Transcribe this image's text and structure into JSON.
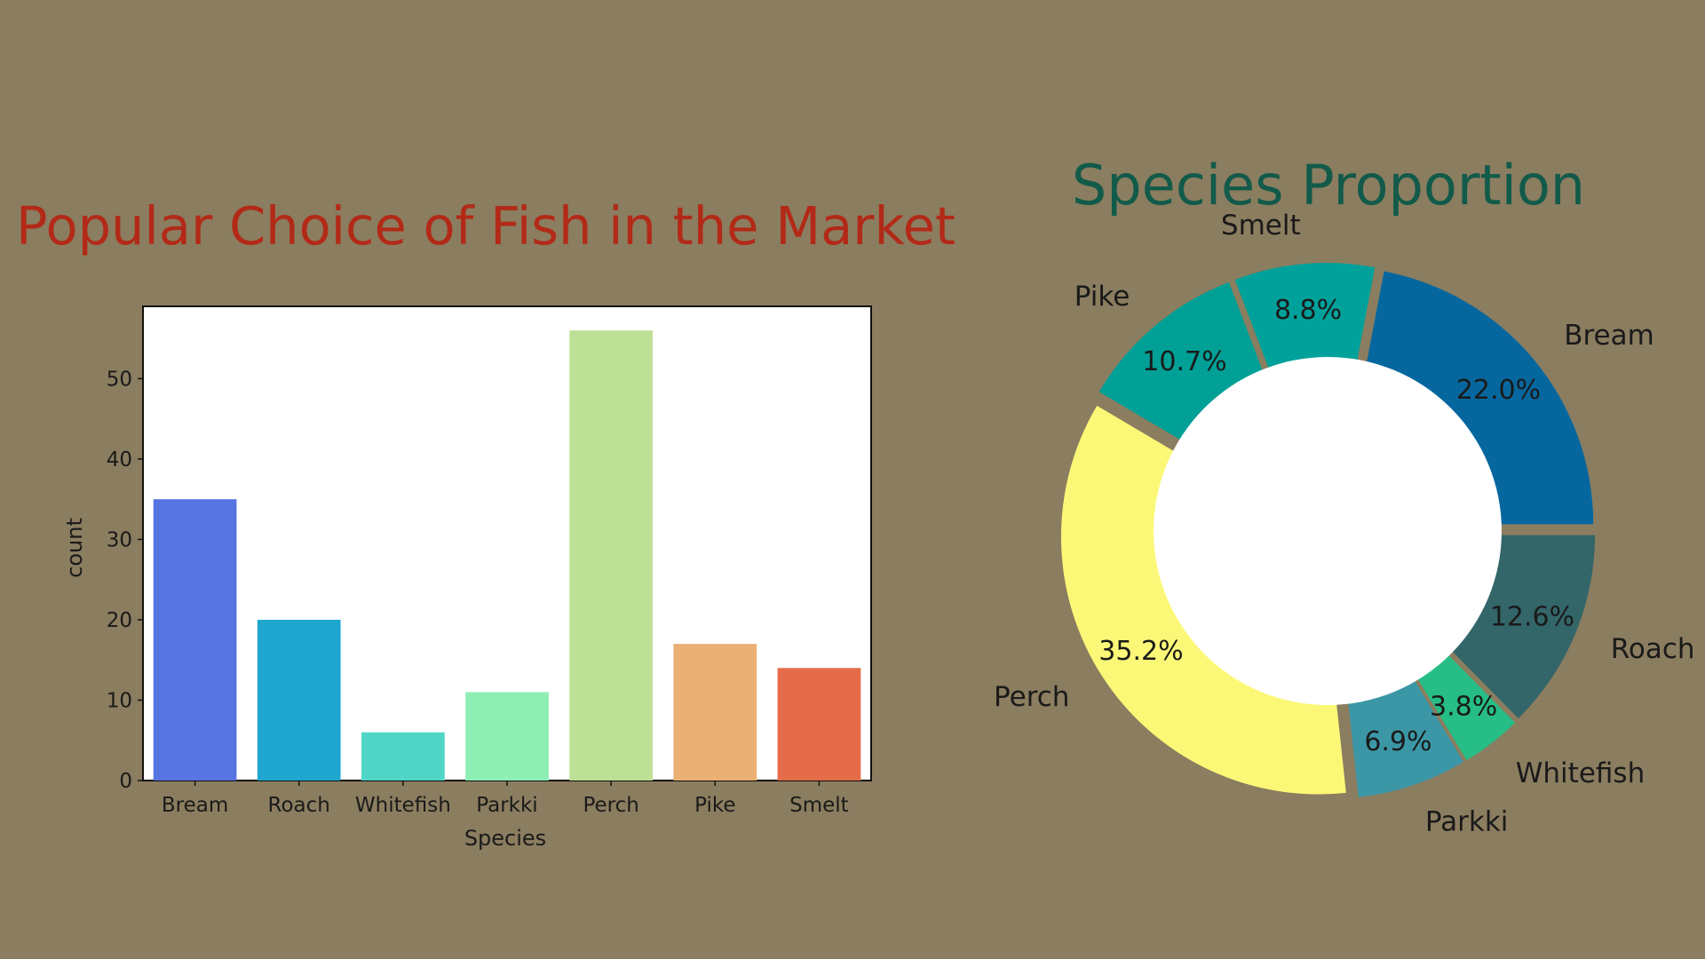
{
  "chart_data": [
    {
      "type": "bar",
      "title": "Popular Choice of Fish in the Market",
      "title_color": "#b22a17",
      "xlabel": "Species",
      "ylabel": "count",
      "categories": [
        "Bream",
        "Roach",
        "Whitefish",
        "Parkki",
        "Perch",
        "Pike",
        "Smelt"
      ],
      "values": [
        35,
        20,
        6,
        11,
        56,
        17,
        14
      ],
      "colors": [
        "#5873e2",
        "#1fa6cf",
        "#50d6c6",
        "#8eeeb4",
        "#bee096",
        "#ebb073",
        "#e56c49"
      ],
      "ylim": [
        0,
        59
      ],
      "yticks": [
        0,
        10,
        20,
        30,
        40,
        50
      ],
      "grid": false,
      "background": "#ffffff"
    },
    {
      "type": "pie",
      "donut": true,
      "title": "Species Proportion",
      "title_color": "#125a4a",
      "labels": [
        "Bream",
        "Smelt",
        "Pike",
        "Perch",
        "Parkki",
        "Whitefish",
        "Roach"
      ],
      "values": [
        22.0,
        8.8,
        10.7,
        35.2,
        6.9,
        3.8,
        12.6
      ],
      "pct_labels": [
        "22.0%",
        "8.8%",
        "10.7%",
        "35.2%",
        "6.9%",
        "3.8%",
        "12.6%"
      ],
      "colors": [
        "#06679f",
        "#00a19a",
        "#00a096",
        "#fcf877",
        "#3b97a6",
        "#26be86",
        "#336669"
      ]
    }
  ],
  "page": {
    "background": "#8b7d5f"
  }
}
